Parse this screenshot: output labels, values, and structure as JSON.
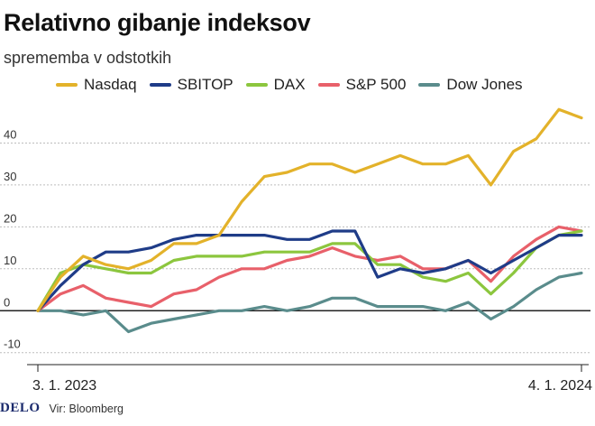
{
  "header": {
    "title": "Relativno gibanje indeksov",
    "subtitle": "sprememba v odstotkih"
  },
  "footer": {
    "logo": "DELO",
    "source": "Vir: Bloomberg"
  },
  "chart_data": {
    "type": "line",
    "title": "Relativno gibanje indeksov",
    "subtitle": "sprememba v odstotkih",
    "ylim": [
      -12,
      50
    ],
    "yticks": [
      -10,
      0,
      10,
      20,
      30,
      40
    ],
    "ytick_labels": [
      "-10",
      "0",
      "10",
      "20",
      "30",
      "40"
    ],
    "xticks": [
      "3. 1. 2023",
      "4. 1. 2024"
    ],
    "grid": true,
    "legend": "top",
    "x": [
      "3. 1. 2023",
      "17. 1. 2023",
      "1. 2. 2023",
      "15. 2. 2023",
      "1. 3. 2023",
      "15. 3. 2023",
      "1. 4. 2023",
      "15. 4. 2023",
      "1. 5. 2023",
      "15. 5. 2023",
      "1. 6. 2023",
      "15. 6. 2023",
      "1. 7. 2023",
      "15. 7. 2023",
      "1. 8. 2023",
      "15. 8. 2023",
      "1. 9. 2023",
      "15. 9. 2023",
      "1. 10. 2023",
      "15. 10. 2023",
      "1. 11. 2023",
      "15. 11. 2023",
      "1. 12. 2023",
      "15. 12. 2023",
      "4. 1. 2024"
    ],
    "series": [
      {
        "name": "Nasdaq",
        "color": "#e3b22a",
        "values": [
          0,
          8,
          13,
          11,
          10,
          12,
          16,
          16,
          18,
          26,
          32,
          33,
          35,
          35,
          33,
          35,
          37,
          35,
          35,
          37,
          30,
          38,
          41,
          48,
          46
        ]
      },
      {
        "name": "SBITOP",
        "color": "#1f3c88",
        "values": [
          0,
          6,
          11,
          14,
          14,
          15,
          17,
          18,
          18,
          18,
          18,
          17,
          17,
          19,
          19,
          8,
          10,
          9,
          10,
          12,
          9,
          12,
          15,
          18,
          18
        ]
      },
      {
        "name": "DAX",
        "color": "#8cc63e",
        "values": [
          0,
          9,
          11,
          10,
          9,
          9,
          12,
          13,
          13,
          13,
          14,
          14,
          14,
          16,
          16,
          11,
          11,
          8,
          7,
          9,
          4,
          9,
          15,
          18,
          19
        ]
      },
      {
        "name": "S&P 500",
        "color": "#e8606a",
        "values": [
          0,
          4,
          6,
          3,
          2,
          1,
          4,
          5,
          8,
          10,
          10,
          12,
          13,
          15,
          13,
          12,
          13,
          10,
          10,
          12,
          7,
          13,
          17,
          20,
          19
        ]
      },
      {
        "name": "Dow Jones",
        "color": "#5a8c8c",
        "values": [
          0,
          0,
          -1,
          0,
          -5,
          -3,
          -2,
          -1,
          0,
          0,
          1,
          0,
          1,
          3,
          3,
          1,
          1,
          1,
          0,
          2,
          -2,
          1,
          5,
          8,
          9
        ]
      }
    ]
  }
}
